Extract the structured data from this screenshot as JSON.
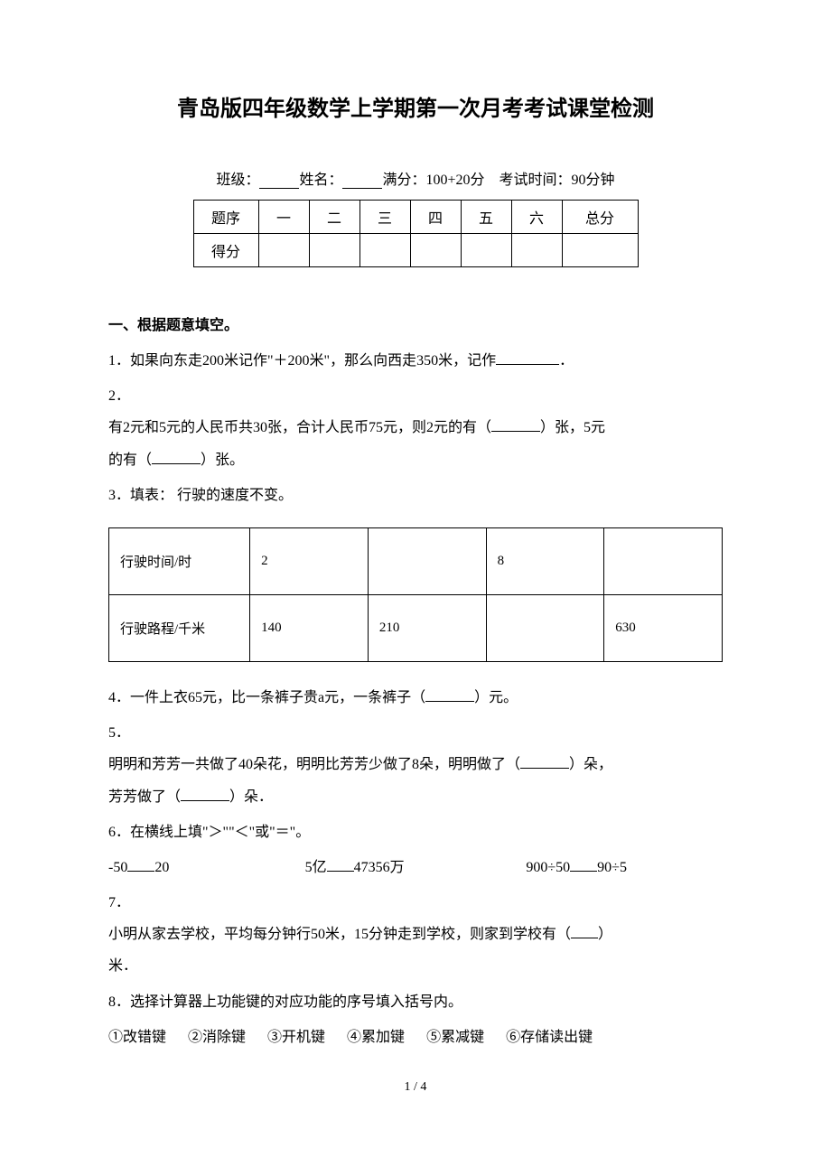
{
  "title": "青岛版四年级数学上学期第一次月考考试课堂检测",
  "info": {
    "class_label": "班级：",
    "name_label": "姓名：",
    "full_score_label": "满分：",
    "full_score_value": "100+20分",
    "time_label": "考试时间：",
    "time_value": "90分钟"
  },
  "score_table": {
    "row1": [
      "题序",
      "一",
      "二",
      "三",
      "四",
      "五",
      "六",
      "总分"
    ],
    "row2_label": "得分"
  },
  "section1_heading": "一、根据题意填空。",
  "q1": {
    "num": "1．",
    "text_a": "如果向东走200米记作\"＋200米\"，那么向西走350米，记作",
    "text_b": "．"
  },
  "q2": {
    "num": "2．",
    "line1": "有2元和5元的人民币共30张，合计人民币75元，则2元的有（",
    "line1b": "）张，5元",
    "line2": "的有（",
    "line2b": "）张。"
  },
  "q3": {
    "num": "3．",
    "text": "填表：  行驶的速度不变。",
    "table": {
      "row1": [
        "行驶时间/时",
        "2",
        "",
        "8",
        ""
      ],
      "row2": [
        "行驶路程/千米",
        "140",
        "210",
        "",
        "630"
      ]
    }
  },
  "q4": {
    "num": "4．",
    "text_a": "一件上衣65元，比一条裤子贵a元，一条裤子（",
    "text_b": "）元。"
  },
  "q5": {
    "num": "5．",
    "line1a": "明明和芳芳一共做了40朵花，明明比芳芳少做了8朵，明明做了（",
    "line1b": "）朵，",
    "line2a": "芳芳做了（",
    "line2b": "）朵．"
  },
  "q6": {
    "num": "6．",
    "text": "在横线上填\"＞\"\"＜\"或\"＝\"。",
    "c1a": "-50",
    "c1b": "20",
    "c2a": "5亿",
    "c2b": "47356万",
    "c3a": "900÷50",
    "c3b": "90÷5"
  },
  "q7": {
    "num": "7．",
    "line1a": "小明从家去学校，平均每分钟行50米，15分钟走到学校，则家到学校有（",
    "line1b": "）",
    "line2": "米．"
  },
  "q8": {
    "num": "8．",
    "text": "选择计算器上功能键的对应功能的序号填入括号内。",
    "keys": [
      "①改错键",
      "②消除键",
      "③开机键",
      "④累加键",
      "⑤累减键",
      "⑥存储读出键"
    ]
  },
  "page_number": "1 / 4",
  "colors": {
    "text": "#000000",
    "background": "#ffffff",
    "border": "#000000"
  },
  "typography": {
    "title_fontsize_pt": 18,
    "body_fontsize_pt": 12,
    "font_family": "SimSun"
  }
}
